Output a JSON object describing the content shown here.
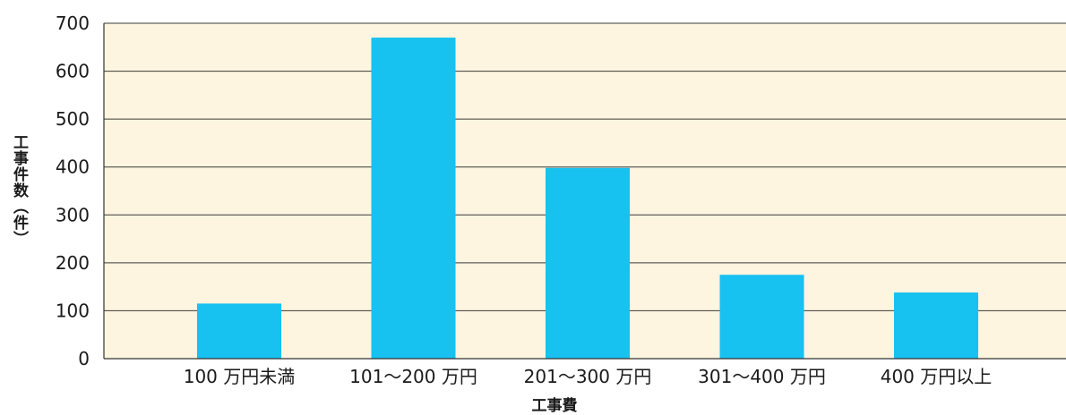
{
  "chart_data": {
    "type": "bar",
    "title": "",
    "xlabel": "工事費",
    "ylabel": "工事件数（件）",
    "categories": [
      "100 万円未満",
      "101～200 万円",
      "201～300 万円",
      "301～400 万円",
      "400 万円以上"
    ],
    "values": [
      115,
      670,
      398,
      175,
      138
    ],
    "ylim": [
      0,
      700
    ],
    "yticks": [
      0,
      100,
      200,
      300,
      400,
      500,
      600,
      700
    ],
    "grid": true,
    "colors": {
      "bar": "#17c1f0",
      "plot_background": "#fdf5e0",
      "gridline": "#3a3a3a"
    }
  }
}
